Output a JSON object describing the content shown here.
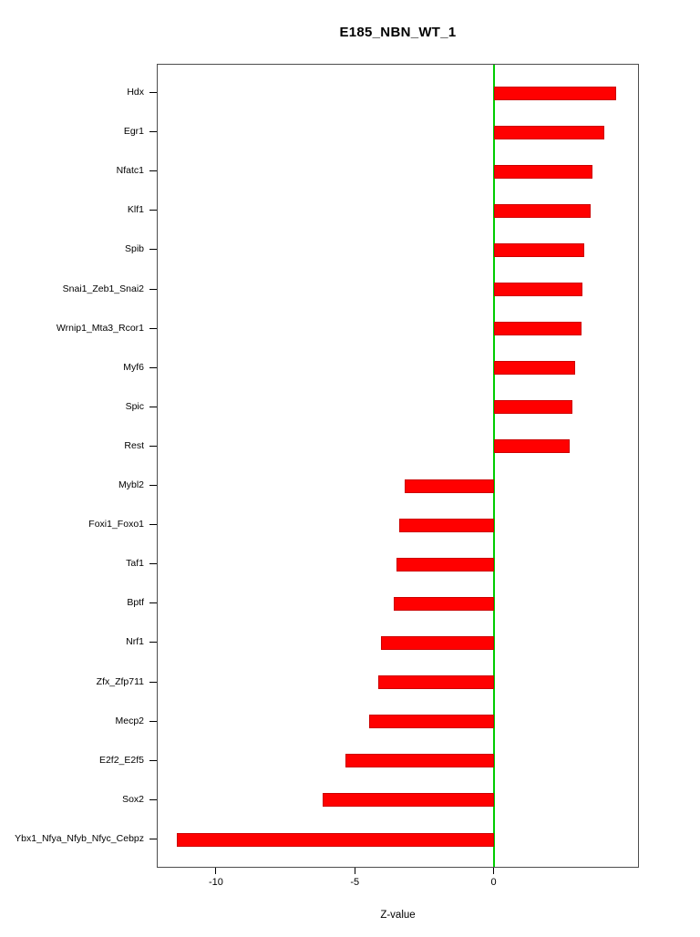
{
  "chart_data": {
    "type": "bar",
    "orientation": "horizontal",
    "title": "E185_NBN_WT_1",
    "xlabel": "Z-value",
    "ylabel": "",
    "xlim": [
      -12.1,
      5.2
    ],
    "x_ticks": [
      -10,
      -5,
      0
    ],
    "grid": false,
    "legend": false,
    "bar_color": "#ff0000",
    "bar_border_color": "#cc0000",
    "zero_line_color": "#00cc00",
    "frame_color": "#4d4d4d",
    "categories": [
      "Hdx",
      "Egr1",
      "Nfatc1",
      "Klf1",
      "Spib",
      "Snai1_Zeb1_Snai2",
      "Wrnip1_Mta3_Rcor1",
      "Myf6",
      "Spic",
      "Rest",
      "Mybl2",
      "Foxi1_Foxo1",
      "Taf1",
      "Bptf",
      "Nrf1",
      "Zfx_Zfp711",
      "Mecp2",
      "E2f2_E2f5",
      "Sox2",
      "Ybx1_Nfya_Nfyb_Nfyc_Cebpz"
    ],
    "values": [
      4.4,
      4.0,
      3.55,
      3.5,
      3.25,
      3.2,
      3.15,
      2.95,
      2.85,
      2.75,
      -3.2,
      -3.4,
      -3.5,
      -3.6,
      -4.05,
      -4.15,
      -4.5,
      -5.35,
      -6.15,
      -11.4
    ]
  }
}
